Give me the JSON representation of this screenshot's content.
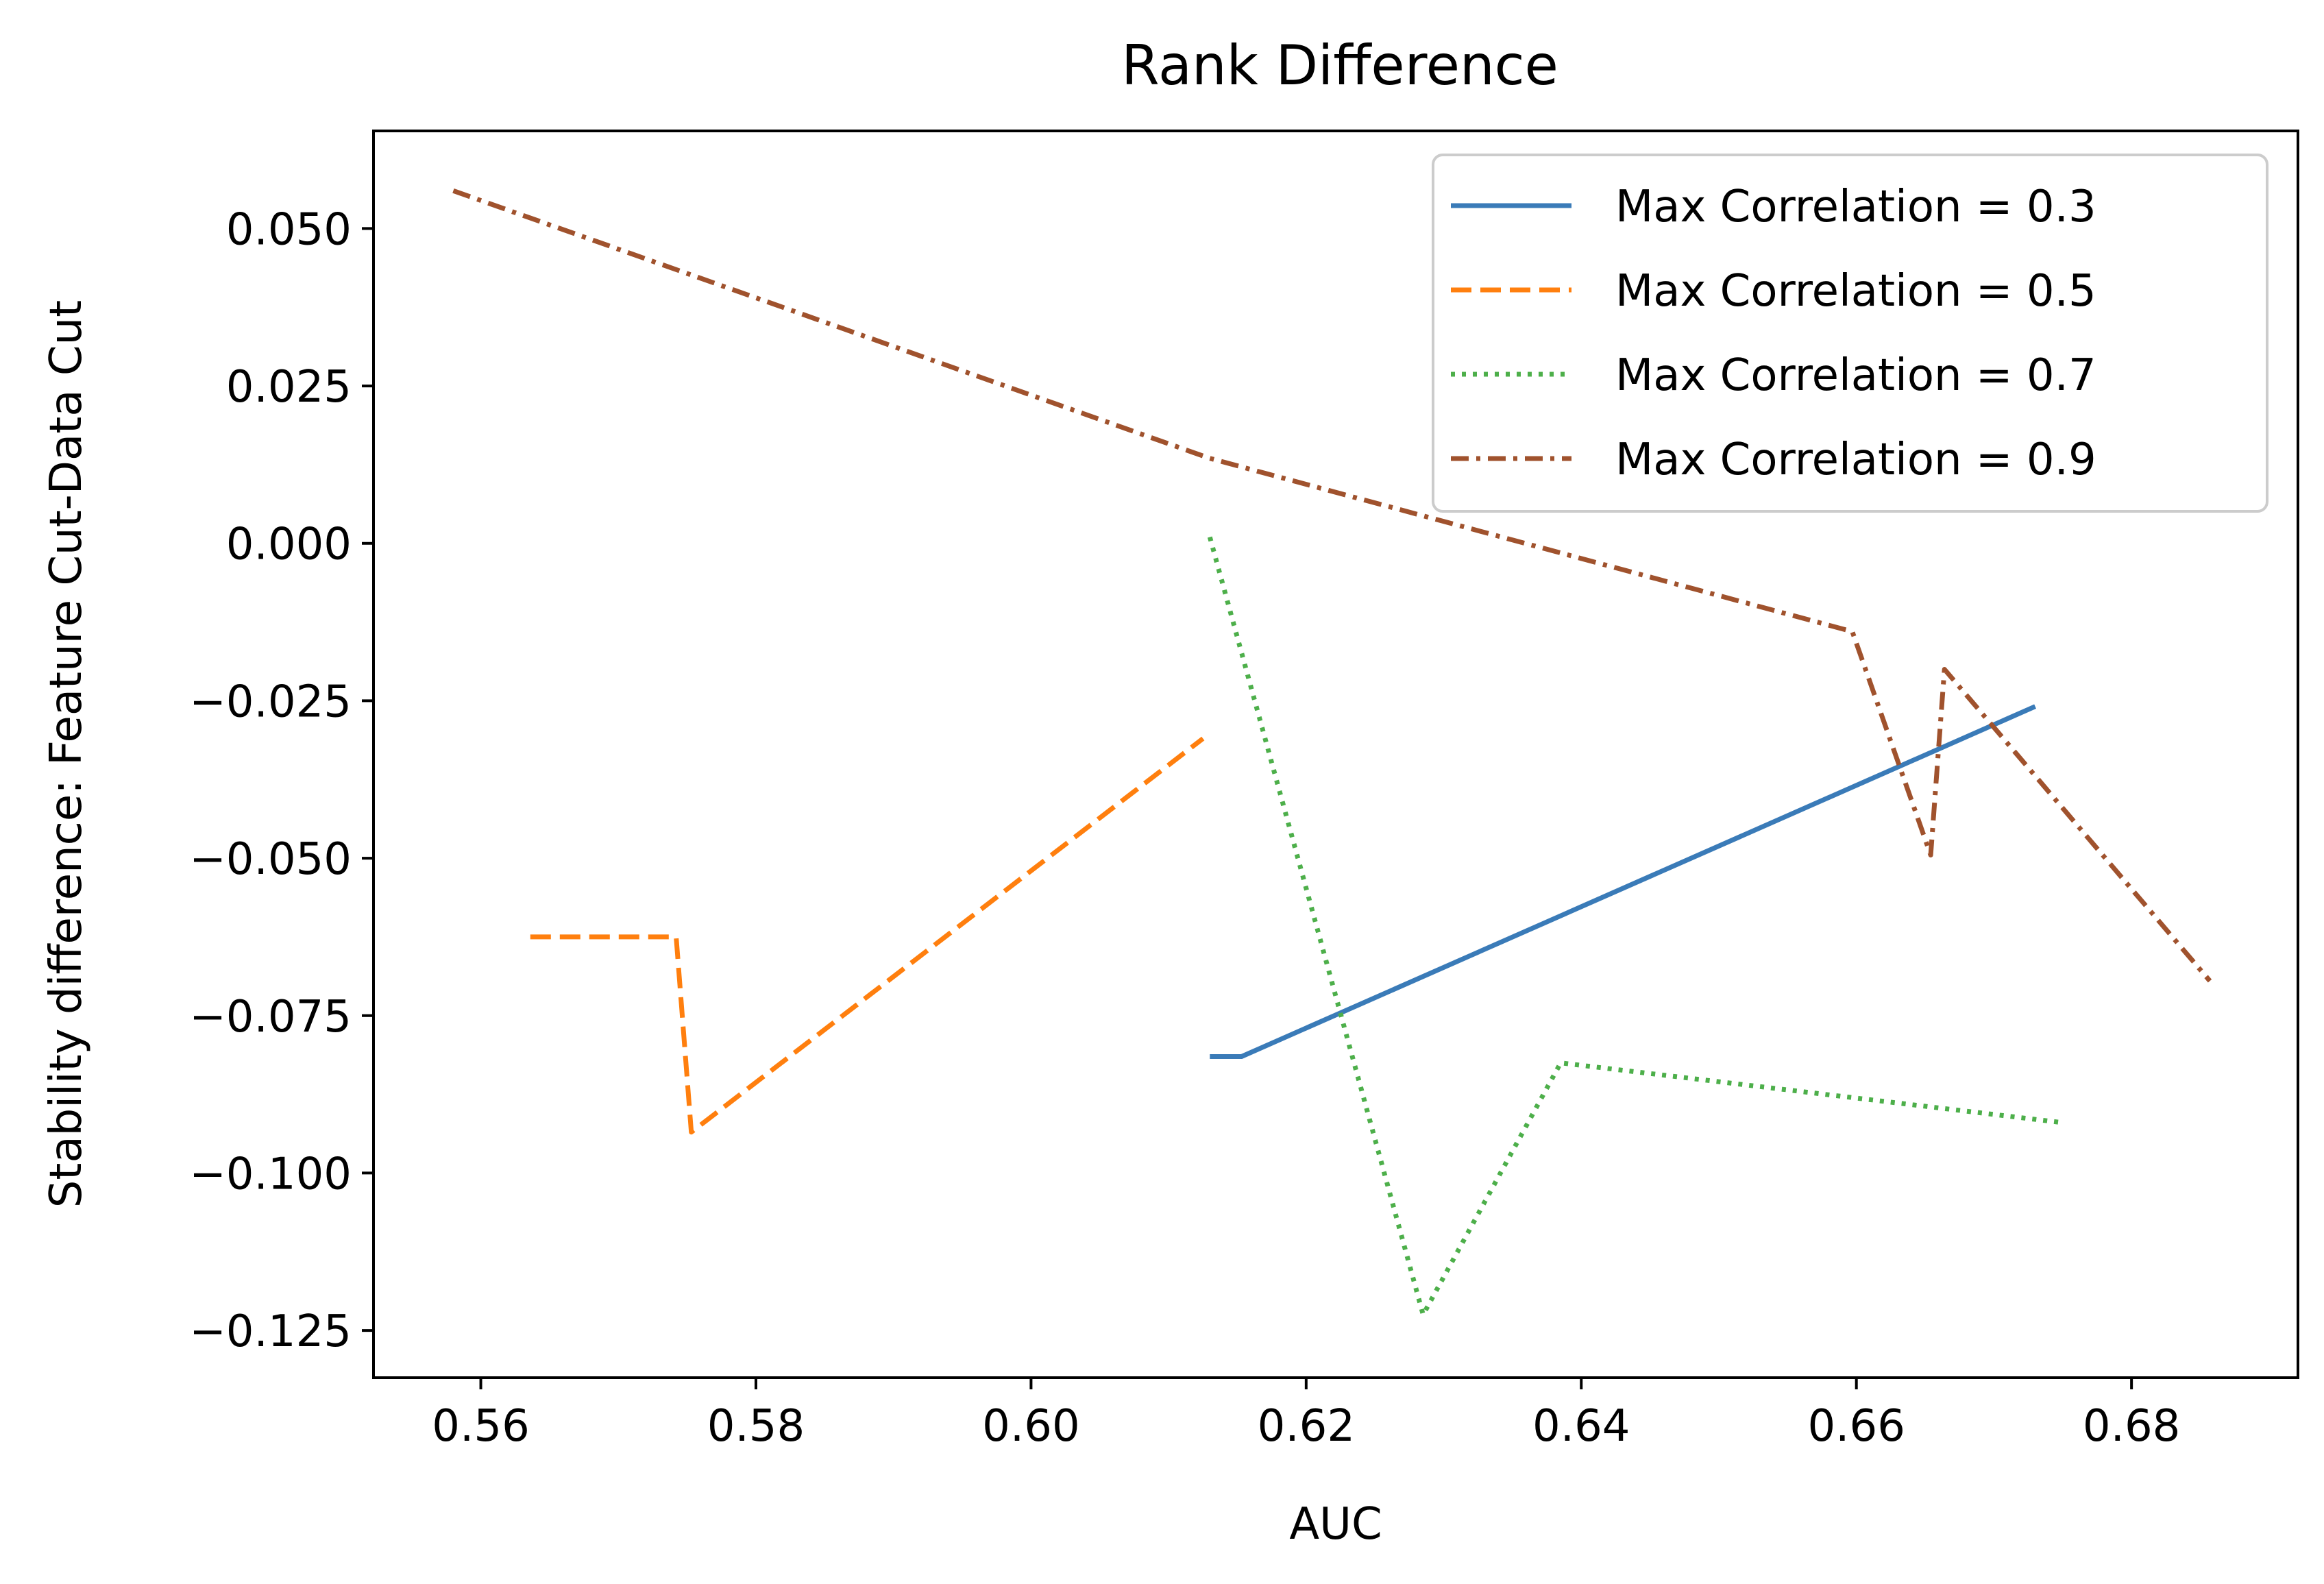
{
  "chart_data": {
    "type": "line",
    "title": "Rank Difference",
    "xlabel": "AUC",
    "ylabel": "Stability difference: Feature Cut-Data Cut",
    "xlim": [
      0.5522,
      0.6921
    ],
    "ylim": [
      -0.1325,
      0.0655
    ],
    "x_ticks": [
      0.56,
      0.58,
      0.6,
      0.62,
      0.64,
      0.66,
      0.68
    ],
    "x_tick_labels": [
      "0.56",
      "0.58",
      "0.60",
      "0.62",
      "0.64",
      "0.66",
      "0.68"
    ],
    "y_ticks": [
      0.05,
      0.025,
      0.0,
      -0.025,
      -0.05,
      -0.075,
      -0.1,
      -0.125
    ],
    "y_tick_labels": [
      "0.050",
      "0.025",
      "0.000",
      "−0.025",
      "−0.050",
      "−0.075",
      "−0.100",
      "−0.125"
    ],
    "grid": false,
    "legend_position": "top-right",
    "series": [
      {
        "name": "Max Correlation = 0.3",
        "color": "#3a7bb8",
        "dash": "solid",
        "points": [
          [
            0.613,
            -0.0815
          ],
          [
            0.6153,
            -0.0815
          ],
          [
            0.673,
            -0.0259
          ]
        ]
      },
      {
        "name": "Max Correlation = 0.5",
        "color": "#ff7f0e",
        "dash": "dashed",
        "points": [
          [
            0.5636,
            -0.0625
          ],
          [
            0.5742,
            -0.0625
          ],
          [
            0.5753,
            -0.0935
          ],
          [
            0.6125,
            -0.031
          ]
        ]
      },
      {
        "name": "Max Correlation = 0.7",
        "color": "#4daf4a",
        "dash": "dotted",
        "points": [
          [
            0.613,
            0.001
          ],
          [
            0.6285,
            -0.1225
          ],
          [
            0.6385,
            -0.0825
          ],
          [
            0.675,
            -0.092
          ]
        ]
      },
      {
        "name": "Max Correlation = 0.9",
        "color": "#a0522d",
        "dash": "dashdot",
        "points": [
          [
            0.558,
            0.056
          ],
          [
            0.613,
            0.0135
          ],
          [
            0.6597,
            -0.014
          ],
          [
            0.6654,
            -0.0495
          ],
          [
            0.6664,
            -0.02
          ],
          [
            0.6857,
            -0.0695
          ]
        ]
      }
    ]
  }
}
